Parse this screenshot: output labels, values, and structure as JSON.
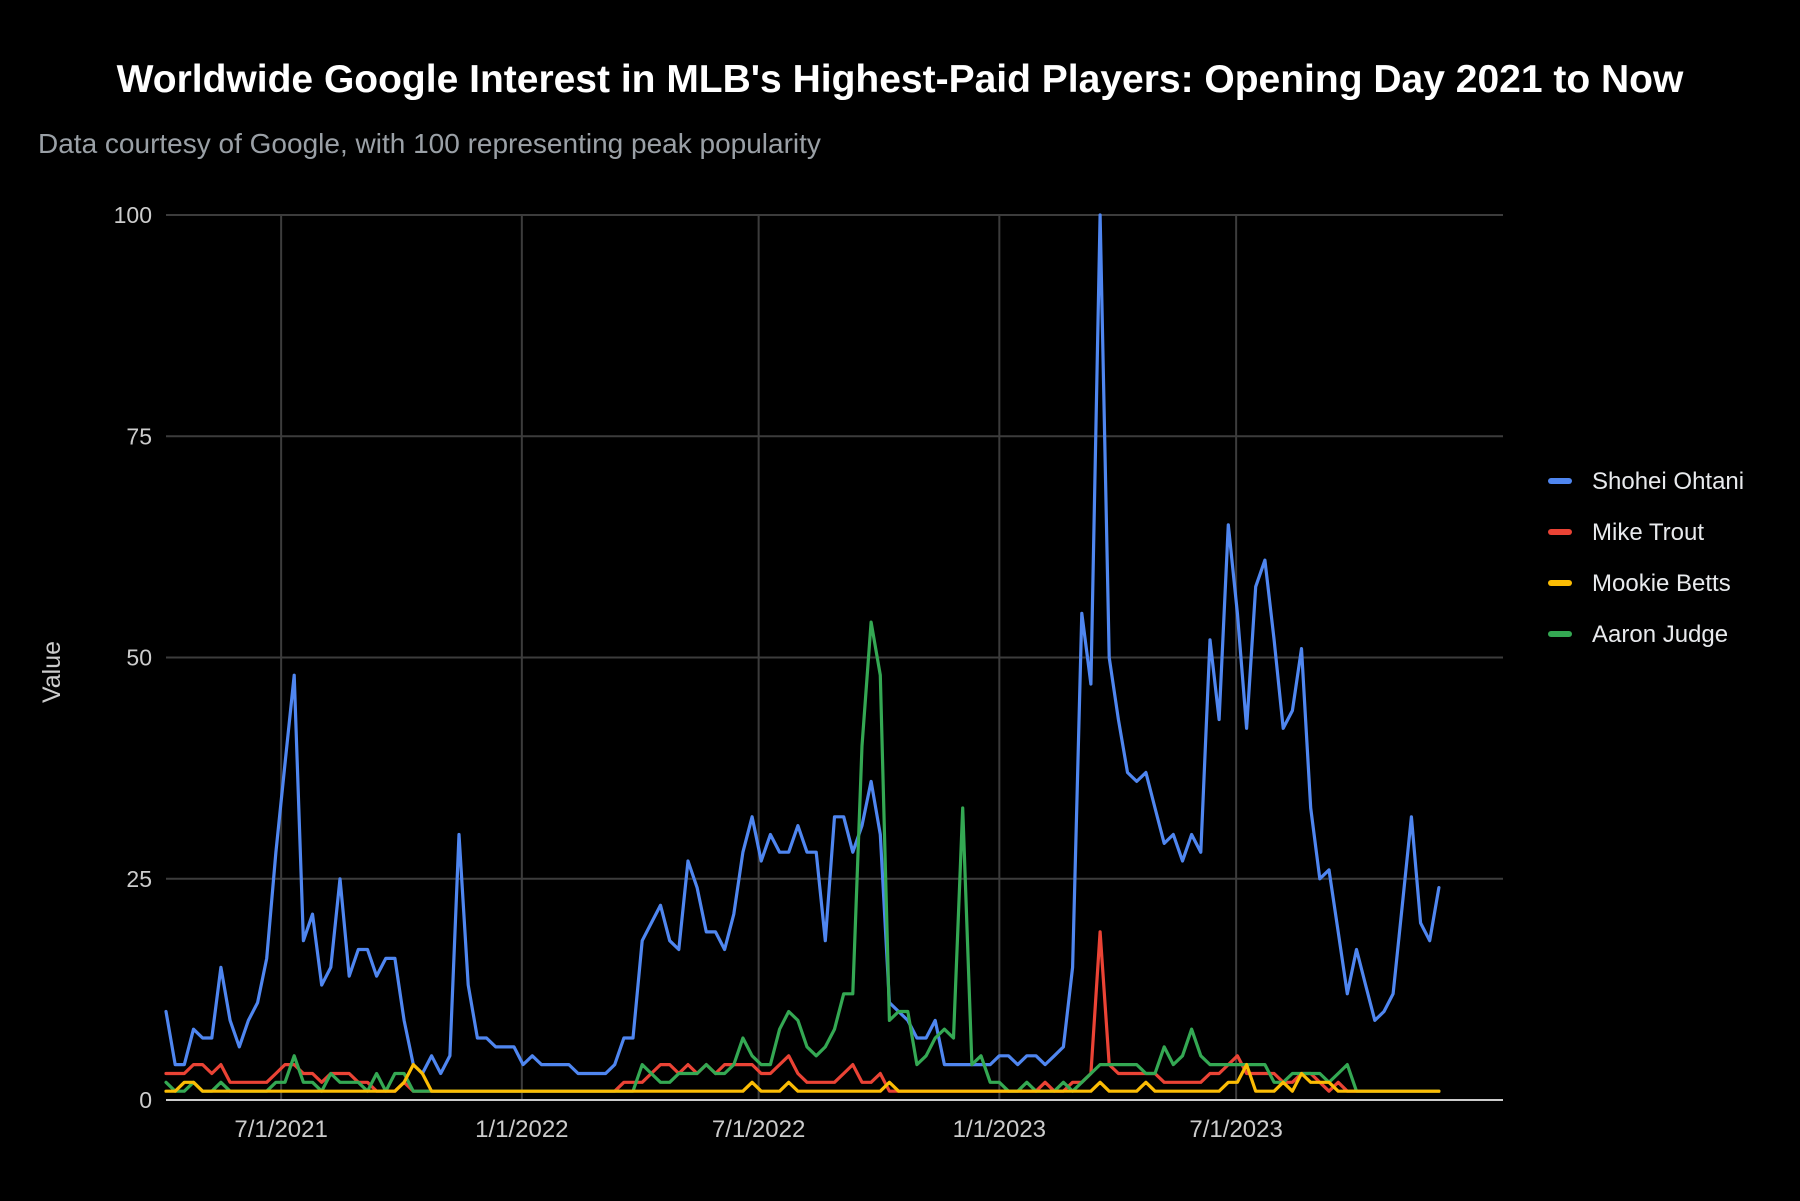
{
  "chart_data": {
    "type": "line",
    "title": "Worldwide Google Interest in MLB's Highest-Paid Players: Opening Day 2021 to Now",
    "subtitle": "Data courtesy of Google, with 100 representing peak popularity",
    "xlabel": "",
    "ylabel": "Value",
    "ylim": [
      0,
      100
    ],
    "y_ticks": [
      0,
      25,
      50,
      75,
      100
    ],
    "x_range": [
      "2021-04-04",
      "2024-01-21"
    ],
    "x_ticks": [
      {
        "date": "2021-07-01",
        "label": "7/1/2021"
      },
      {
        "date": "2022-01-01",
        "label": "1/1/2022"
      },
      {
        "date": "2022-07-01",
        "label": "7/1/2022"
      },
      {
        "date": "2023-01-01",
        "label": "1/1/2023"
      },
      {
        "date": "2023-07-01",
        "label": "7/1/2023"
      }
    ],
    "grid": true,
    "legend_position": "right",
    "start_date": "2021-04-04",
    "interval": "weekly",
    "series": [
      {
        "name": "Shohei Ohtani",
        "color": "#4f86f0",
        "values": [
          10,
          4,
          4,
          8,
          7,
          7,
          15,
          9,
          6,
          9,
          11,
          16,
          28,
          38,
          48,
          18,
          21,
          13,
          15,
          25,
          14,
          17,
          17,
          14,
          16,
          16,
          9,
          4,
          3,
          5,
          3,
          5,
          30,
          13,
          7,
          7,
          6,
          6,
          6,
          4,
          5,
          4,
          4,
          4,
          4,
          3,
          3,
          3,
          3,
          4,
          7,
          7,
          18,
          20,
          22,
          18,
          17,
          27,
          24,
          19,
          19,
          17,
          21,
          28,
          32,
          27,
          30,
          28,
          28,
          31,
          28,
          28,
          18,
          32,
          32,
          28,
          31,
          36,
          30,
          11,
          10,
          9,
          7,
          7,
          9,
          4,
          4,
          4,
          4,
          4,
          4,
          5,
          5,
          4,
          5,
          5,
          4,
          5,
          6,
          15,
          55,
          47,
          100,
          50,
          43,
          37,
          36,
          37,
          33,
          29,
          30,
          27,
          30,
          28,
          52,
          43,
          65,
          55,
          42,
          58,
          61,
          52,
          42,
          44,
          51,
          33,
          25,
          26,
          19,
          12,
          17,
          13,
          9,
          10,
          12,
          22,
          32,
          20,
          18,
          24
        ]
      },
      {
        "name": "Mike Trout",
        "color": "#ea4335",
        "values": [
          3,
          3,
          3,
          4,
          4,
          3,
          4,
          2,
          2,
          2,
          2,
          2,
          3,
          4,
          4,
          3,
          3,
          2,
          3,
          3,
          3,
          2,
          2,
          1,
          1,
          1,
          2,
          1,
          1,
          1,
          1,
          1,
          1,
          1,
          1,
          1,
          1,
          1,
          1,
          1,
          1,
          1,
          1,
          1,
          1,
          1,
          1,
          1,
          1,
          1,
          2,
          2,
          2,
          3,
          4,
          4,
          3,
          4,
          3,
          4,
          3,
          4,
          4,
          4,
          4,
          3,
          3,
          4,
          5,
          3,
          2,
          2,
          2,
          2,
          3,
          4,
          2,
          2,
          3,
          1,
          1,
          1,
          1,
          1,
          1,
          1,
          1,
          1,
          1,
          1,
          1,
          1,
          1,
          1,
          1,
          1,
          2,
          1,
          1,
          2,
          2,
          3,
          19,
          4,
          3,
          3,
          3,
          3,
          3,
          2,
          2,
          2,
          2,
          2,
          3,
          3,
          4,
          5,
          3,
          3,
          3,
          3,
          2,
          2,
          3,
          3,
          2,
          1,
          2,
          1,
          1,
          1,
          1,
          1,
          1,
          1,
          1,
          1,
          1,
          1
        ]
      },
      {
        "name": "Mookie Betts",
        "color": "#fbbc04",
        "values": [
          1,
          1,
          2,
          2,
          1,
          1,
          1,
          1,
          1,
          1,
          1,
          1,
          1,
          1,
          1,
          1,
          1,
          1,
          1,
          1,
          1,
          1,
          1,
          1,
          1,
          1,
          2,
          4,
          3,
          1,
          1,
          1,
          1,
          1,
          1,
          1,
          1,
          1,
          1,
          1,
          1,
          1,
          1,
          1,
          1,
          1,
          1,
          1,
          1,
          1,
          1,
          1,
          1,
          1,
          1,
          1,
          1,
          1,
          1,
          1,
          1,
          1,
          1,
          1,
          2,
          1,
          1,
          1,
          2,
          1,
          1,
          1,
          1,
          1,
          1,
          1,
          1,
          1,
          1,
          2,
          1,
          1,
          1,
          1,
          1,
          1,
          1,
          1,
          1,
          1,
          1,
          1,
          1,
          1,
          1,
          1,
          1,
          1,
          1,
          1,
          1,
          1,
          2,
          1,
          1,
          1,
          1,
          2,
          1,
          1,
          1,
          1,
          1,
          1,
          1,
          1,
          2,
          2,
          4,
          1,
          1,
          1,
          2,
          1,
          3,
          2,
          2,
          2,
          1,
          1,
          1,
          1,
          1,
          1,
          1,
          1,
          1,
          1,
          1,
          1
        ]
      },
      {
        "name": "Aaron Judge",
        "color": "#34a853",
        "values": [
          2,
          1,
          1,
          2,
          1,
          1,
          2,
          1,
          1,
          1,
          1,
          1,
          2,
          2,
          5,
          2,
          2,
          1,
          3,
          2,
          2,
          2,
          1,
          3,
          1,
          3,
          3,
          1,
          1,
          1,
          1,
          1,
          1,
          1,
          1,
          1,
          1,
          1,
          1,
          1,
          1,
          1,
          1,
          1,
          1,
          1,
          1,
          1,
          1,
          1,
          1,
          1,
          4,
          3,
          2,
          2,
          3,
          3,
          3,
          4,
          3,
          3,
          4,
          7,
          5,
          4,
          4,
          8,
          10,
          9,
          6,
          5,
          6,
          8,
          12,
          12,
          40,
          54,
          48,
          9,
          10,
          10,
          4,
          5,
          7,
          8,
          7,
          33,
          4,
          5,
          2,
          2,
          1,
          1,
          2,
          1,
          1,
          1,
          2,
          1,
          2,
          3,
          4,
          4,
          4,
          4,
          4,
          3,
          3,
          6,
          4,
          5,
          8,
          5,
          4,
          4,
          4,
          4,
          4,
          4,
          4,
          2,
          2,
          3,
          3,
          3,
          3,
          2,
          3,
          4,
          1,
          1,
          1,
          1,
          1,
          1,
          1,
          1,
          1,
          1
        ]
      }
    ]
  }
}
